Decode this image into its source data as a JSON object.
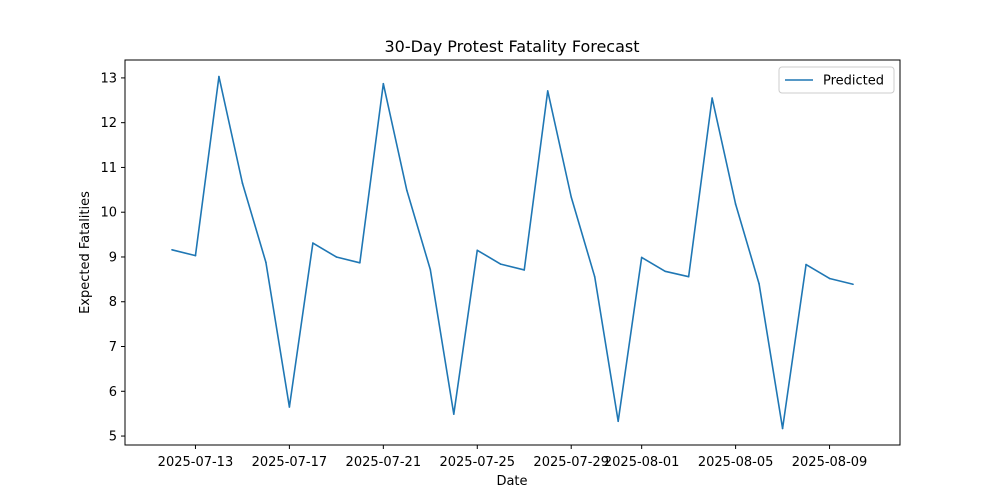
{
  "chart_data": {
    "type": "line",
    "title": "30-Day Protest Fatality Forecast",
    "xlabel": "Date",
    "ylabel": "Expected Fatalities",
    "x_range": [
      "2025-07-10",
      "2025-08-12"
    ],
    "ylim": [
      4.8,
      13.4
    ],
    "grid": false,
    "legend_placement": "top-right",
    "x_ticks": [
      {
        "date": "2025-07-13",
        "label": "2025-07-13"
      },
      {
        "date": "2025-07-17",
        "label": "2025-07-17"
      },
      {
        "date": "2025-07-21",
        "label": "2025-07-21"
      },
      {
        "date": "2025-07-25",
        "label": "2025-07-25"
      },
      {
        "date": "2025-07-29",
        "label": "2025-07-29"
      },
      {
        "date": "2025-08-01",
        "label": "2025-08-01"
      },
      {
        "date": "2025-08-05",
        "label": "2025-08-05"
      },
      {
        "date": "2025-08-09",
        "label": "2025-08-09"
      }
    ],
    "y_ticks": [
      5,
      6,
      7,
      8,
      9,
      10,
      11,
      12,
      13
    ],
    "series": [
      {
        "name": "Predicted",
        "color": "#1f77b4",
        "points": [
          {
            "x": "2025-07-12",
            "y": 9.16
          },
          {
            "x": "2025-07-13",
            "y": 9.03
          },
          {
            "x": "2025-07-14",
            "y": 13.03
          },
          {
            "x": "2025-07-15",
            "y": 10.65
          },
          {
            "x": "2025-07-16",
            "y": 8.88
          },
          {
            "x": "2025-07-17",
            "y": 5.65
          },
          {
            "x": "2025-07-18",
            "y": 9.31
          },
          {
            "x": "2025-07-19",
            "y": 9.0
          },
          {
            "x": "2025-07-20",
            "y": 8.87
          },
          {
            "x": "2025-07-21",
            "y": 12.87
          },
          {
            "x": "2025-07-22",
            "y": 10.49
          },
          {
            "x": "2025-07-23",
            "y": 8.72
          },
          {
            "x": "2025-07-24",
            "y": 5.49
          },
          {
            "x": "2025-07-25",
            "y": 9.15
          },
          {
            "x": "2025-07-26",
            "y": 8.84
          },
          {
            "x": "2025-07-27",
            "y": 8.71
          },
          {
            "x": "2025-07-28",
            "y": 12.71
          },
          {
            "x": "2025-07-29",
            "y": 10.34
          },
          {
            "x": "2025-07-30",
            "y": 8.56
          },
          {
            "x": "2025-07-31",
            "y": 5.33
          },
          {
            "x": "2025-08-01",
            "y": 8.99
          },
          {
            "x": "2025-08-02",
            "y": 8.68
          },
          {
            "x": "2025-08-03",
            "y": 8.56
          },
          {
            "x": "2025-08-04",
            "y": 12.55
          },
          {
            "x": "2025-08-05",
            "y": 10.18
          },
          {
            "x": "2025-08-06",
            "y": 8.4
          },
          {
            "x": "2025-08-07",
            "y": 5.17
          },
          {
            "x": "2025-08-08",
            "y": 8.83
          },
          {
            "x": "2025-08-09",
            "y": 8.52
          },
          {
            "x": "2025-08-10",
            "y": 8.39
          }
        ]
      }
    ]
  }
}
